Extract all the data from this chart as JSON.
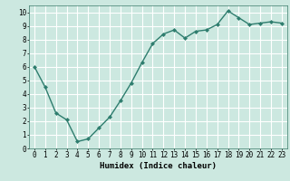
{
  "x": [
    0,
    1,
    2,
    3,
    4,
    5,
    6,
    7,
    8,
    9,
    10,
    11,
    12,
    13,
    14,
    15,
    16,
    17,
    18,
    19,
    20,
    21,
    22,
    23
  ],
  "y": [
    6.0,
    4.5,
    2.6,
    2.1,
    0.5,
    0.7,
    1.5,
    2.3,
    3.5,
    4.8,
    6.3,
    7.7,
    8.4,
    8.7,
    8.1,
    8.6,
    8.7,
    9.1,
    10.1,
    9.6,
    9.1,
    9.2,
    9.3,
    9.2
  ],
  "line_color": "#2e7d6e",
  "marker": "D",
  "marker_size": 2.0,
  "bg_color": "#cce8e0",
  "grid_color": "#ffffff",
  "xlabel": "Humidex (Indice chaleur)",
  "xlim": [
    -0.5,
    23.5
  ],
  "ylim": [
    0,
    10.5
  ],
  "yticks": [
    0,
    1,
    2,
    3,
    4,
    5,
    6,
    7,
    8,
    9,
    10
  ],
  "xticks": [
    0,
    1,
    2,
    3,
    4,
    5,
    6,
    7,
    8,
    9,
    10,
    11,
    12,
    13,
    14,
    15,
    16,
    17,
    18,
    19,
    20,
    21,
    22,
    23
  ],
  "tick_label_fontsize": 5.5,
  "xlabel_fontsize": 6.5,
  "line_width": 1.0
}
